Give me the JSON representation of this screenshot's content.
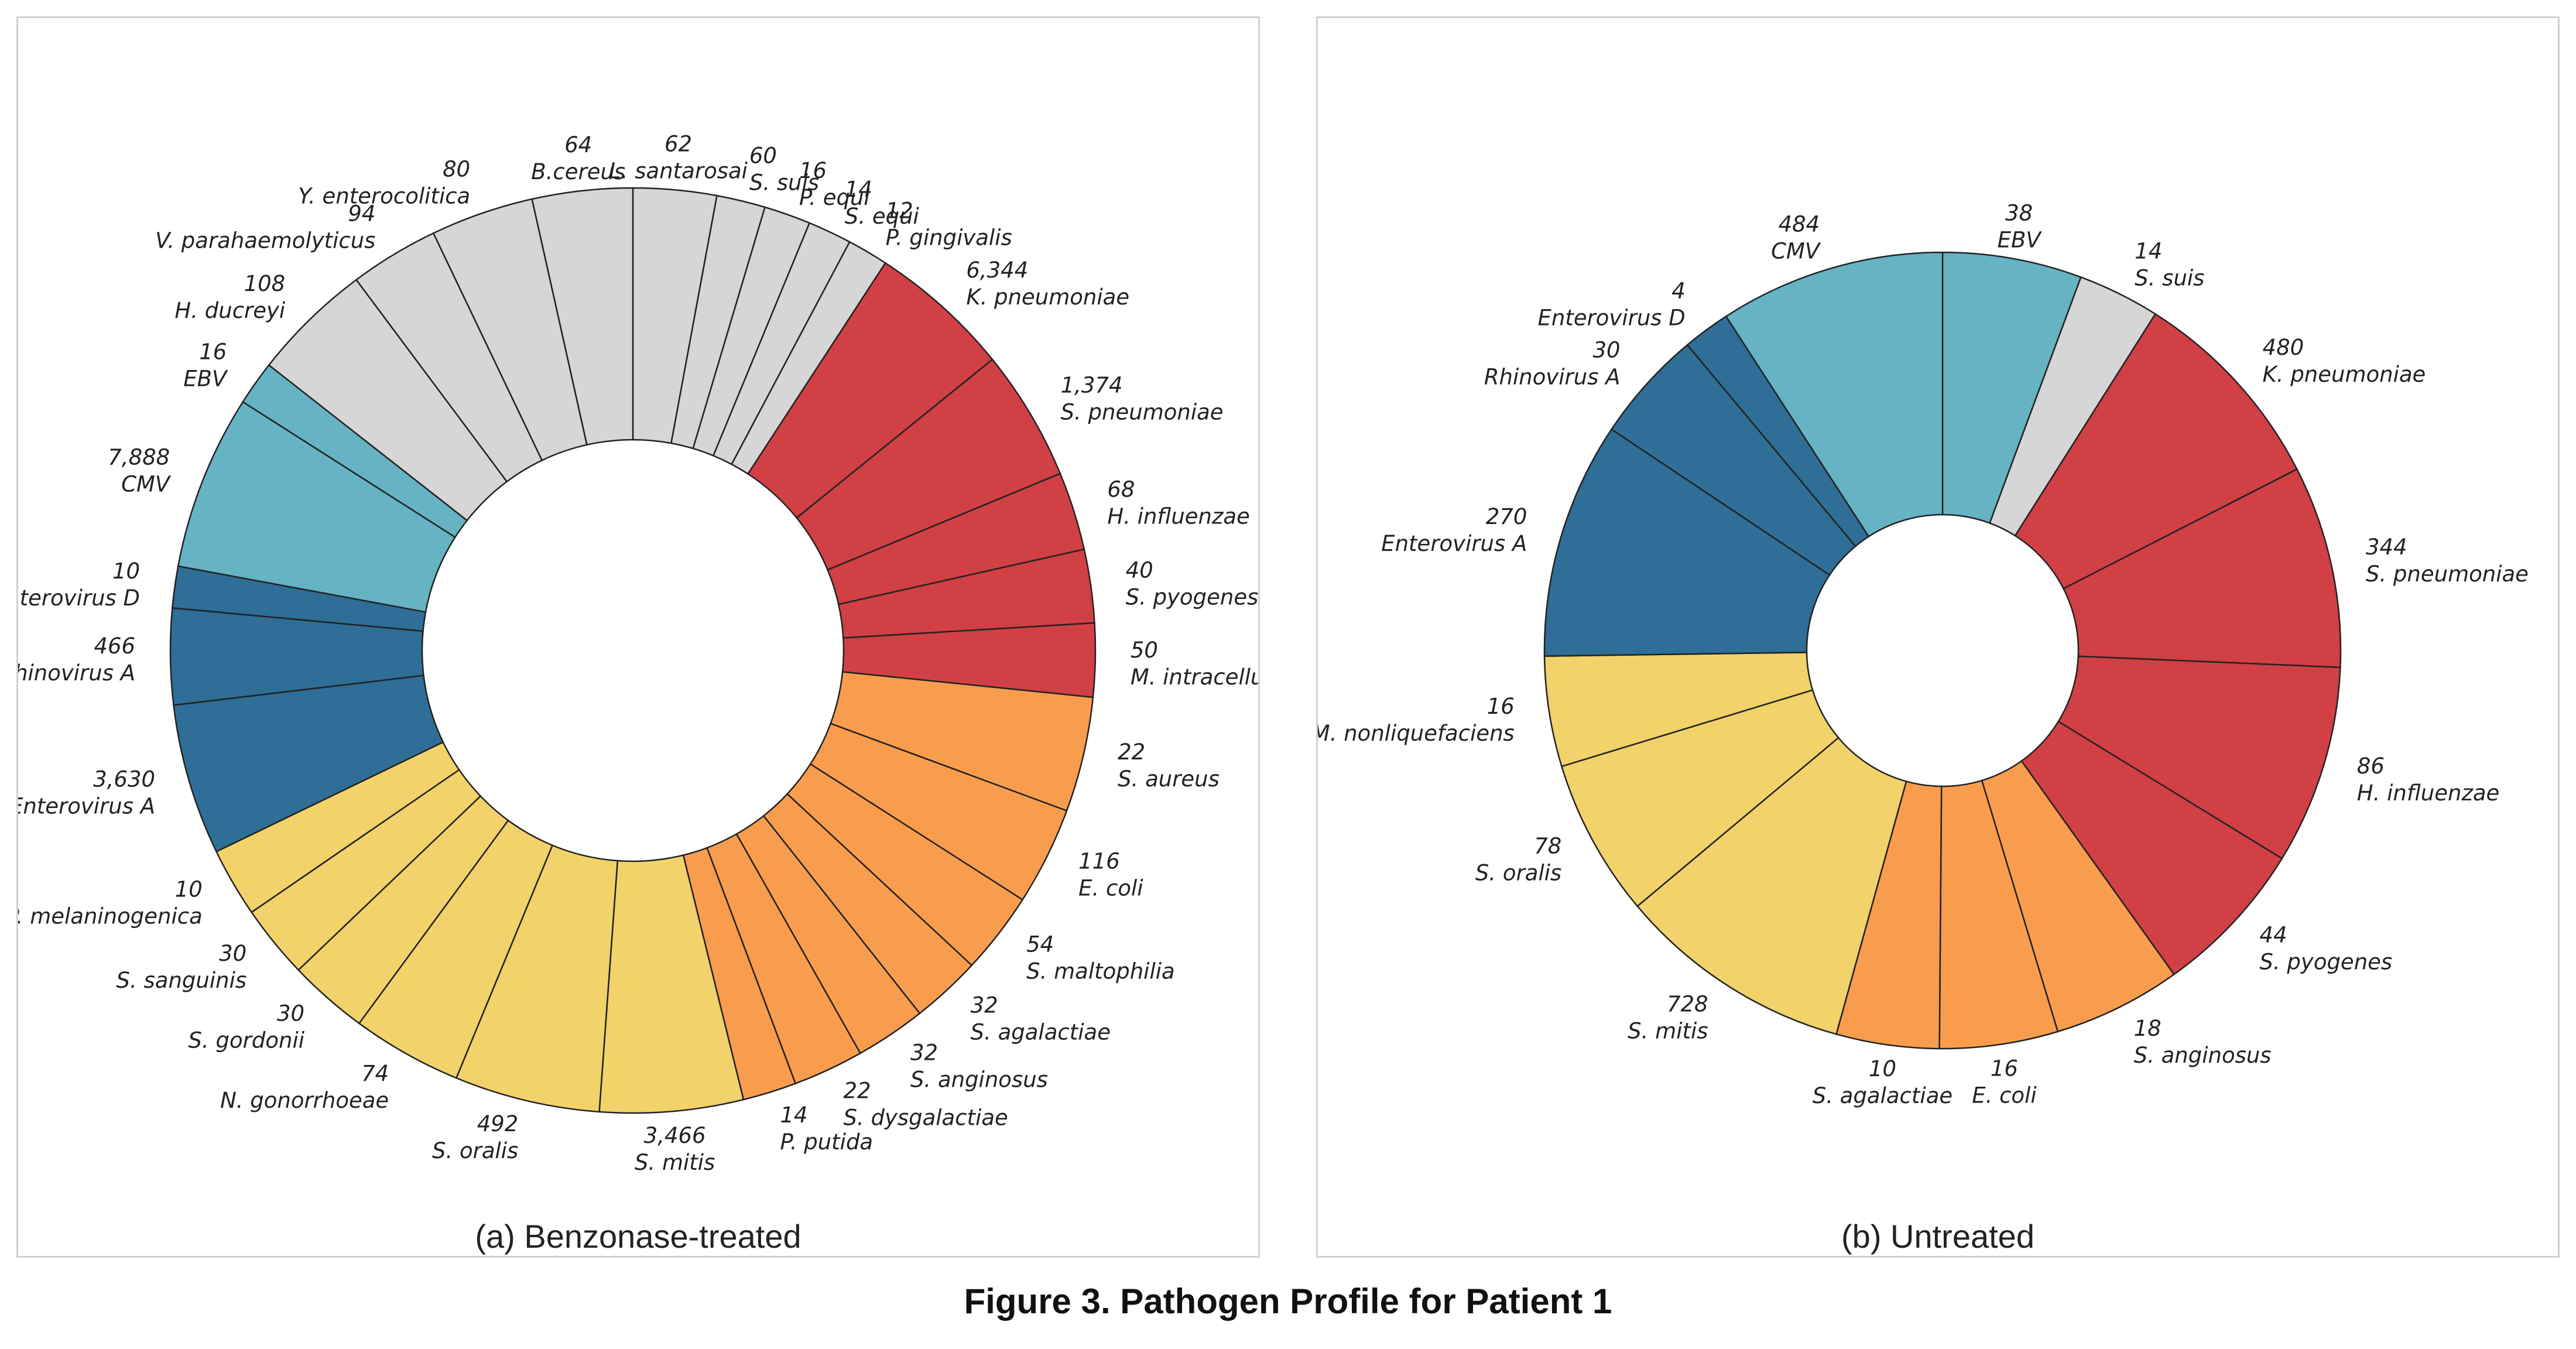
{
  "figure_title": "Figure 3. Pathogen Profile for Patient 1",
  "colors": {
    "respiratory_bacteria": "#d04045",
    "skin_gut_bacteria": "#f89d4e",
    "oral_commensals": "#f2d26a",
    "enteric_respiratory_viruses": "#2f6e96",
    "herpesviruses": "#65b3c3",
    "other": "#d6d6d6"
  },
  "chart_data": [
    {
      "type": "pie",
      "donut": true,
      "caption": "(a) Benzonase-treated",
      "slices": [
        {
          "label": "L. santarosai",
          "value": "62",
          "group": "other"
        },
        {
          "label": "S. suis",
          "value": "60",
          "group": "other"
        },
        {
          "label": "P. equi",
          "value": "16",
          "group": "other"
        },
        {
          "label": "S. equi",
          "value": "14",
          "group": "other"
        },
        {
          "label": "P. gingivalis",
          "value": "12",
          "group": "other"
        },
        {
          "label": "K. pneumoniae",
          "value": "6,344",
          "group": "respiratory_bacteria"
        },
        {
          "label": "S. pneumoniae",
          "value": "1,374",
          "group": "respiratory_bacteria"
        },
        {
          "label": "H. influenzae",
          "value": "68",
          "group": "respiratory_bacteria"
        },
        {
          "label": "S. pyogenes",
          "value": "40",
          "group": "respiratory_bacteria"
        },
        {
          "label": "M. intracellulare",
          "value": "50",
          "group": "respiratory_bacteria"
        },
        {
          "label": "S. aureus",
          "value": "22",
          "group": "skin_gut_bacteria"
        },
        {
          "label": "E. coli",
          "value": "116",
          "group": "skin_gut_bacteria"
        },
        {
          "label": "S. maltophilia",
          "value": "54",
          "group": "skin_gut_bacteria"
        },
        {
          "label": "S. agalactiae",
          "value": "32",
          "group": "skin_gut_bacteria"
        },
        {
          "label": "S. anginosus",
          "value": "32",
          "group": "skin_gut_bacteria"
        },
        {
          "label": "S. dysgalactiae",
          "value": "22",
          "group": "skin_gut_bacteria"
        },
        {
          "label": "P. putida",
          "value": "14",
          "group": "skin_gut_bacteria"
        },
        {
          "label": "S. mitis",
          "value": "3,466",
          "group": "oral_commensals"
        },
        {
          "label": "S. oralis",
          "value": "492",
          "group": "oral_commensals"
        },
        {
          "label": "N. gonorrhoeae",
          "value": "74",
          "group": "oral_commensals"
        },
        {
          "label": "S. gordonii",
          "value": "30",
          "group": "oral_commensals"
        },
        {
          "label": "S. sanguinis",
          "value": "30",
          "group": "oral_commensals"
        },
        {
          "label": "P. melaninogenica",
          "value": "10",
          "group": "oral_commensals"
        },
        {
          "label": "Enterovirus A",
          "value": "3,630",
          "group": "enteric_respiratory_viruses"
        },
        {
          "label": "Rhinovirus A",
          "value": "466",
          "group": "enteric_respiratory_viruses"
        },
        {
          "label": "Enterovirus D",
          "value": "10",
          "group": "enteric_respiratory_viruses"
        },
        {
          "label": "CMV",
          "value": "7,888",
          "group": "herpesviruses"
        },
        {
          "label": "EBV",
          "value": "16",
          "group": "herpesviruses"
        },
        {
          "label": "H. ducreyi",
          "value": "108",
          "group": "other"
        },
        {
          "label": "V. parahaemolyticus",
          "value": "94",
          "group": "other"
        },
        {
          "label": "Y. enterocolitica",
          "value": "80",
          "group": "other"
        },
        {
          "label": "B.cereus",
          "value": "64",
          "group": "other"
        }
      ]
    },
    {
      "type": "pie",
      "donut": true,
      "caption": "(b) Untreated",
      "slices": [
        {
          "label": "EBV",
          "value": "38",
          "group": "herpesviruses"
        },
        {
          "label": "S. suis",
          "value": "14",
          "group": "other"
        },
        {
          "label": "K. pneumoniae",
          "value": "480",
          "group": "respiratory_bacteria"
        },
        {
          "label": "S. pneumoniae",
          "value": "344",
          "group": "respiratory_bacteria"
        },
        {
          "label": "H. influenzae",
          "value": "86",
          "group": "respiratory_bacteria"
        },
        {
          "label": "S. pyogenes",
          "value": "44",
          "group": "respiratory_bacteria"
        },
        {
          "label": "S. anginosus",
          "value": "18",
          "group": "skin_gut_bacteria"
        },
        {
          "label": "E. coli",
          "value": "16",
          "group": "skin_gut_bacteria"
        },
        {
          "label": "S. agalactiae",
          "value": "10",
          "group": "skin_gut_bacteria"
        },
        {
          "label": "S. mitis",
          "value": "728",
          "group": "oral_commensals"
        },
        {
          "label": "S. oralis",
          "value": "78",
          "group": "oral_commensals"
        },
        {
          "label": "M. nonliquefaciens",
          "value": "16",
          "group": "oral_commensals"
        },
        {
          "label": "Enterovirus A",
          "value": "270",
          "group": "enteric_respiratory_viruses"
        },
        {
          "label": "Rhinovirus A",
          "value": "30",
          "group": "enteric_respiratory_viruses"
        },
        {
          "label": "Enterovirus D",
          "value": "4",
          "group": "enteric_respiratory_viruses"
        },
        {
          "label": "CMV",
          "value": "484",
          "group": "herpesviruses"
        }
      ]
    }
  ]
}
